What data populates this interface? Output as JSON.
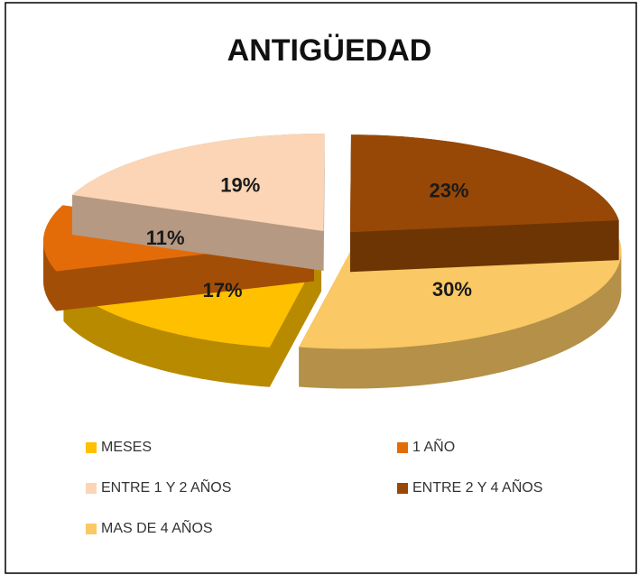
{
  "chart_data": {
    "type": "pie",
    "title": "ANTIGÜEDAD",
    "categories": [
      "MESES",
      "1 AÑO",
      "ENTRE 1 Y 2 AÑOS",
      "ENTRE 2 Y 4 AÑOS",
      "MAS DE 4 AÑOS"
    ],
    "values": [
      17,
      11,
      19,
      23,
      30
    ],
    "value_labels": [
      "17%",
      "11%",
      "19%",
      "23%",
      "30%"
    ],
    "colors": [
      "#ffc000",
      "#e36c09",
      "#fbd5b5",
      "#974806",
      "#fac864"
    ],
    "legend": "bottom"
  }
}
